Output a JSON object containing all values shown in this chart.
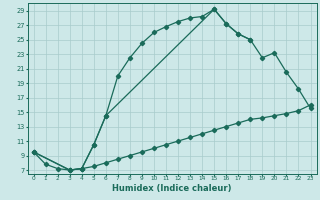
{
  "xlabel": "Humidex (Indice chaleur)",
  "bg_color": "#cde8e8",
  "grid_color": "#a8cccc",
  "line_color": "#1a6b5a",
  "xlim": [
    -0.5,
    23.5
  ],
  "ylim": [
    6.5,
    30
  ],
  "yticks": [
    7,
    9,
    11,
    13,
    15,
    17,
    19,
    21,
    23,
    25,
    27,
    29
  ],
  "xticks": [
    0,
    1,
    2,
    3,
    4,
    5,
    6,
    7,
    8,
    9,
    10,
    11,
    12,
    13,
    14,
    15,
    16,
    17,
    18,
    19,
    20,
    21,
    22,
    23
  ],
  "line1_x": [
    0,
    1,
    2,
    3,
    4,
    5,
    6,
    7,
    8,
    9,
    10,
    11,
    12,
    13,
    14,
    15,
    16,
    17,
    18
  ],
  "line1_y": [
    9.5,
    7.8,
    7.2,
    7.0,
    7.2,
    10.5,
    14.5,
    20.0,
    22.5,
    24.5,
    26.0,
    26.8,
    27.5,
    28.0,
    28.2,
    29.2,
    27.2,
    25.8,
    25.0
  ],
  "line2_x": [
    0,
    3,
    4,
    5,
    6,
    15,
    16,
    17,
    18,
    19,
    20,
    21,
    22,
    23
  ],
  "line2_y": [
    9.5,
    7.0,
    7.2,
    10.5,
    14.5,
    29.2,
    27.2,
    25.8,
    25.0,
    22.5,
    23.2,
    20.5,
    18.2,
    15.5
  ],
  "line3_x": [
    0,
    3,
    4,
    5,
    6,
    7,
    8,
    9,
    10,
    11,
    12,
    13,
    14,
    15,
    16,
    17,
    18,
    19,
    20,
    21,
    22,
    23
  ],
  "line3_y": [
    9.5,
    7.0,
    7.2,
    7.5,
    8.0,
    8.5,
    9.0,
    9.5,
    10.0,
    10.5,
    11.0,
    11.5,
    12.0,
    12.5,
    13.0,
    13.5,
    14.0,
    14.2,
    14.5,
    14.8,
    15.2,
    16.0
  ]
}
